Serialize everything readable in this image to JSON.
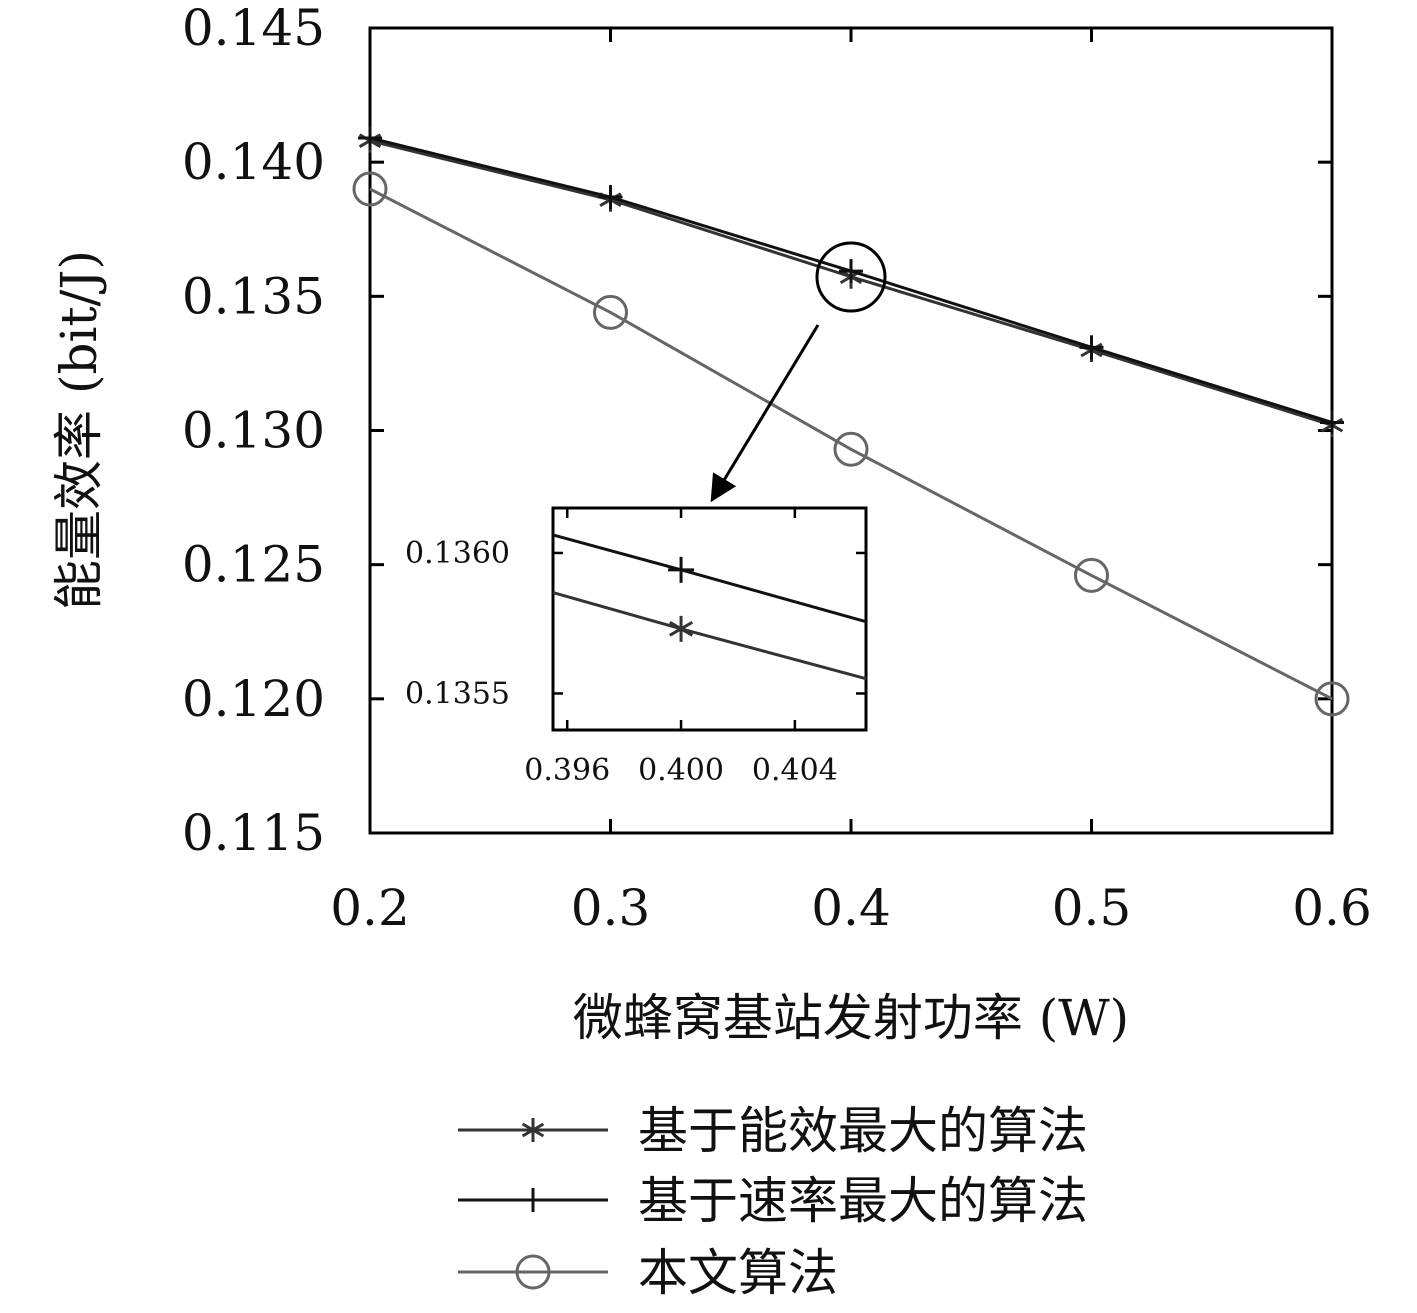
{
  "chart_data": {
    "type": "line",
    "xlabel": "微蜂窝基站发射功率 (W)",
    "ylabel": "能量效率 (bit/J)",
    "xlim": [
      0.2,
      0.6
    ],
    "ylim": [
      0.115,
      0.145
    ],
    "xticks": [
      "0.2",
      "0.3",
      "0.4",
      "0.5",
      "0.6"
    ],
    "yticks": [
      "0.115",
      "0.120",
      "0.125",
      "0.130",
      "0.135",
      "0.140",
      "0.145"
    ],
    "x": [
      0.2,
      0.3,
      0.4,
      0.5,
      0.6
    ],
    "series": [
      {
        "name": "基于能效最大的算法",
        "marker": "asterisk",
        "color": "#333333",
        "values": [
          0.1408,
          0.1386,
          0.13573,
          0.133,
          0.1302
        ]
      },
      {
        "name": "基于速率最大的算法",
        "marker": "plus",
        "color": "#111111",
        "values": [
          0.1409,
          0.1387,
          0.13594,
          0.1331,
          0.1303
        ]
      },
      {
        "name": "本文算法",
        "marker": "circle",
        "color": "#666666",
        "values": [
          0.139,
          0.1344,
          0.1293,
          0.1246,
          0.12
        ]
      }
    ],
    "legend": "bottom",
    "grid": false,
    "inset": {
      "xlim": [
        0.3955,
        0.4065
      ],
      "ylim": [
        0.13537,
        0.13616
      ],
      "xticks": [
        "0.396",
        "0.400",
        "0.404"
      ],
      "yticks": [
        "0.1355",
        "0.1360"
      ],
      "zoom_center": [
        0.4,
        0.1358
      ]
    }
  }
}
